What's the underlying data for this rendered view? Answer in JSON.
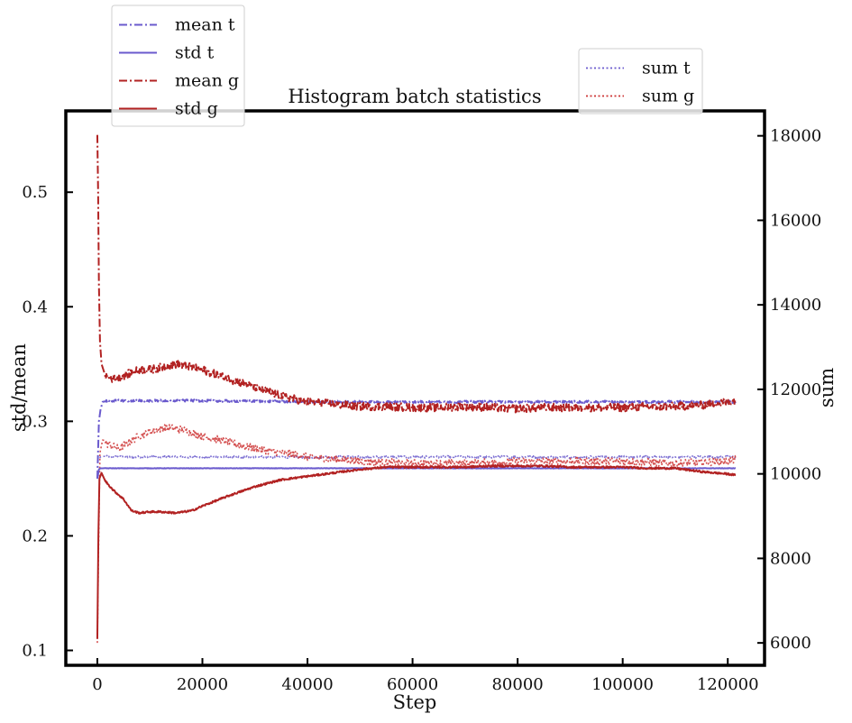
{
  "chart_data": {
    "type": "line",
    "title": "Histogram batch statistics",
    "xlabel": "Step",
    "ylabel_left": "std/mean",
    "ylabel_right": "sum",
    "xlim": [
      -6000,
      127000
    ],
    "ylim_left": [
      0.087,
      0.571
    ],
    "ylim_right": [
      5470,
      18590
    ],
    "x_ticks": [
      0,
      20000,
      40000,
      60000,
      80000,
      100000,
      120000
    ],
    "y_left_ticks": [
      0.1,
      0.2,
      0.3,
      0.4,
      0.5
    ],
    "y_right_ticks": [
      6000,
      8000,
      10000,
      12000,
      14000,
      16000,
      18000
    ],
    "grid": false,
    "legend_left": {
      "placement": "top-left, above axes",
      "entries": [
        {
          "label": "mean t",
          "color": "#6a5acd",
          "style": "dashdot"
        },
        {
          "label": "std t",
          "color": "#6a5acd",
          "style": "solid"
        },
        {
          "label": "mean g",
          "color": "#b22222",
          "style": "dashdot"
        },
        {
          "label": "std g",
          "color": "#b22222",
          "style": "solid"
        }
      ]
    },
    "legend_right": {
      "placement": "top-right, above axes",
      "entries": [
        {
          "label": "sum t",
          "color": "#6a5acd",
          "style": "dotted"
        },
        {
          "label": "sum g",
          "color": "#cc3333",
          "style": "dotted"
        }
      ]
    },
    "series": [
      {
        "name": "mean t",
        "axis": "left",
        "color": "#6a5acd",
        "style": "dashdot",
        "x": [
          0,
          300,
          600,
          1000,
          2000,
          5000,
          10000,
          20000,
          40000,
          60000,
          80000,
          100000,
          120000,
          121500
        ],
        "y": [
          0.25,
          0.3,
          0.31,
          0.317,
          0.318,
          0.318,
          0.318,
          0.318,
          0.317,
          0.317,
          0.317,
          0.317,
          0.317,
          0.317
        ],
        "noise": 0.001
      },
      {
        "name": "std t",
        "axis": "left",
        "color": "#6a5acd",
        "style": "solid",
        "x": [
          0,
          300,
          600,
          1000,
          2000,
          10000,
          40000,
          80000,
          120000,
          121500
        ],
        "y": [
          0.25,
          0.258,
          0.259,
          0.259,
          0.259,
          0.259,
          0.259,
          0.259,
          0.259,
          0.259
        ],
        "noise": 0.0002
      },
      {
        "name": "mean g",
        "axis": "left",
        "color": "#b22222",
        "style": "dashdot",
        "x": [
          0,
          150,
          300,
          500,
          800,
          1500,
          3000,
          5000,
          8000,
          10000,
          15000,
          20000,
          25000,
          30000,
          35000,
          40000,
          45000,
          50000,
          55000,
          60000,
          65000,
          70000,
          75000,
          80000,
          85000,
          90000,
          95000,
          100000,
          105000,
          110000,
          115000,
          120000,
          121500
        ],
        "y": [
          0.55,
          0.5,
          0.42,
          0.37,
          0.35,
          0.34,
          0.337,
          0.34,
          0.345,
          0.345,
          0.35,
          0.345,
          0.337,
          0.33,
          0.322,
          0.317,
          0.315,
          0.313,
          0.313,
          0.312,
          0.312,
          0.313,
          0.312,
          0.311,
          0.312,
          0.312,
          0.312,
          0.312,
          0.313,
          0.313,
          0.314,
          0.317,
          0.318
        ],
        "noise": 0.0035
      },
      {
        "name": "std g",
        "axis": "left",
        "color": "#b22222",
        "style": "solid",
        "x": [
          0,
          200,
          400,
          800,
          1500,
          3000,
          5000,
          6500,
          8000,
          10000,
          12000,
          15000,
          18000,
          20000,
          25000,
          30000,
          35000,
          40000,
          45000,
          50000,
          55000,
          60000,
          65000,
          70000,
          75000,
          80000,
          85000,
          90000,
          95000,
          100000,
          105000,
          110000,
          115000,
          120000,
          121500
        ],
        "y": [
          0.11,
          0.2,
          0.25,
          0.255,
          0.248,
          0.24,
          0.232,
          0.222,
          0.22,
          0.221,
          0.221,
          0.22,
          0.222,
          0.226,
          0.235,
          0.243,
          0.249,
          0.252,
          0.255,
          0.258,
          0.26,
          0.26,
          0.26,
          0.26,
          0.261,
          0.261,
          0.261,
          0.26,
          0.26,
          0.26,
          0.259,
          0.259,
          0.256,
          0.254,
          0.253
        ],
        "noise": 0.0008
      },
      {
        "name": "sum t",
        "axis": "right",
        "color": "#6a5acd",
        "style": "dotted",
        "x": [
          0,
          300,
          600,
          1000,
          3000,
          20000,
          60000,
          100000,
          121500
        ],
        "y": [
          10300,
          10350,
          10400,
          10410,
          10400,
          10400,
          10400,
          10400,
          10400
        ],
        "noise": 30
      },
      {
        "name": "sum g",
        "axis": "right",
        "color": "#cc3333",
        "style": "dotted",
        "x": [
          0,
          200,
          500,
          1000,
          2000,
          4000,
          6000,
          8000,
          10000,
          13000,
          16000,
          20000,
          25000,
          30000,
          35000,
          40000,
          45000,
          50000,
          60000,
          70000,
          80000,
          90000,
          100000,
          110000,
          120000,
          121500
        ],
        "y": [
          6000,
          8000,
          10500,
          10800,
          10700,
          10600,
          10750,
          10900,
          11000,
          11100,
          11050,
          10900,
          10750,
          10600,
          10500,
          10400,
          10350,
          10300,
          10250,
          10250,
          10300,
          10300,
          10300,
          10250,
          10300,
          10350
        ],
        "noise": 90
      }
    ]
  }
}
